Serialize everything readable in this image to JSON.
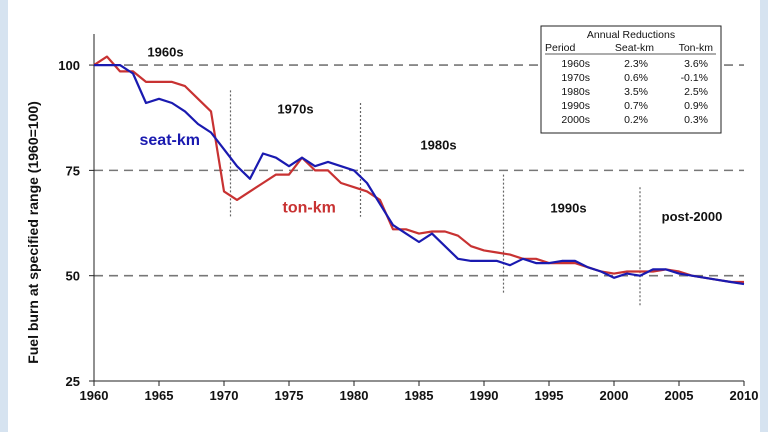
{
  "chart_data": {
    "type": "line",
    "ylabel": "Fuel burn at specified range (1960=100)",
    "xlim": [
      1960,
      2010
    ],
    "ylim": [
      25,
      105
    ],
    "x_ticks": [
      1960,
      1965,
      1970,
      1975,
      1980,
      1985,
      1990,
      1995,
      2000,
      2005,
      2010
    ],
    "y_ticks": [
      25,
      50,
      75,
      100
    ],
    "reference_lines": [
      100,
      75,
      50
    ],
    "period_dividers": [
      1970.5,
      1980.5,
      1991.5,
      2002
    ],
    "decade_labels": [
      {
        "text": "1960s",
        "x": 1965.5,
        "y": 102
      },
      {
        "text": "1970s",
        "x": 1975.5,
        "y": 88.5
      },
      {
        "text": "1980s",
        "x": 1986.5,
        "y": 80
      },
      {
        "text": "1990s",
        "x": 1996.5,
        "y": 65
      },
      {
        "text": "post-2000",
        "x": 2006,
        "y": 63
      }
    ],
    "series": [
      {
        "name": "seat-km",
        "color": "#1a1ab0",
        "label_pos": {
          "x": 1963.5,
          "y": 81
        },
        "x": [
          1960,
          1961,
          1962,
          1963,
          1964,
          1965,
          1966,
          1967,
          1968,
          1969,
          1970,
          1971,
          1972,
          1973,
          1974,
          1975,
          1976,
          1977,
          1978,
          1979,
          1980,
          1981,
          1982,
          1983,
          1984,
          1985,
          1986,
          1987,
          1988,
          1989,
          1990,
          1991,
          1992,
          1993,
          1994,
          1995,
          1996,
          1997,
          1998,
          1999,
          2000,
          2001,
          2002,
          2003,
          2004,
          2005,
          2006,
          2007,
          2008,
          2009,
          2010
        ],
        "y": [
          100,
          100,
          100,
          98,
          91,
          92,
          91,
          89,
          86,
          84,
          80,
          76,
          73,
          79,
          78,
          76,
          78,
          76,
          77,
          76,
          75,
          72,
          67,
          62,
          60,
          58,
          60,
          57,
          54,
          53.5,
          53.5,
          53.5,
          52.5,
          54,
          53,
          53,
          53.5,
          53.5,
          52,
          51,
          49.5,
          50.5,
          50,
          51.5,
          51.5,
          50.5,
          50,
          49.5,
          49,
          48.5,
          48
        ]
      },
      {
        "name": "ton-km",
        "color": "#c83232",
        "label_pos": {
          "x": 1974.5,
          "y": 65
        },
        "x": [
          1960,
          1961,
          1962,
          1963,
          1964,
          1965,
          1966,
          1967,
          1968,
          1969,
          1970,
          1971,
          1972,
          1973,
          1974,
          1975,
          1976,
          1977,
          1978,
          1979,
          1980,
          1981,
          1982,
          1983,
          1984,
          1985,
          1986,
          1987,
          1988,
          1989,
          1990,
          1991,
          1992,
          1993,
          1994,
          1995,
          1996,
          1997,
          1998,
          1999,
          2000,
          2001,
          2002,
          2003,
          2004,
          2005,
          2006,
          2007,
          2008,
          2009,
          2010
        ],
        "y": [
          100,
          102,
          98.5,
          98.5,
          96,
          96,
          96,
          95,
          92,
          89,
          70,
          68,
          70,
          72,
          74,
          74,
          78,
          75,
          75,
          72,
          71,
          70,
          68,
          61,
          61,
          60,
          60.5,
          60.5,
          59.5,
          57,
          56,
          55.5,
          55,
          54,
          54,
          53,
          53,
          53,
          52,
          51,
          50.5,
          51,
          51,
          51,
          51.5,
          51,
          50,
          49.5,
          49,
          48.5,
          48.5
        ]
      }
    ],
    "table": {
      "title": "Annual Reductions",
      "headers": [
        "Period",
        "Seat-km",
        "Ton-km"
      ],
      "rows": [
        [
          "1960s",
          "2.3%",
          "3.6%"
        ],
        [
          "1970s",
          "0.6%",
          "-0.1%"
        ],
        [
          "1980s",
          "3.5%",
          "2.5%"
        ],
        [
          "1990s",
          "0.7%",
          "0.9%"
        ],
        [
          "2000s",
          "0.2%",
          "0.3%"
        ]
      ]
    }
  }
}
